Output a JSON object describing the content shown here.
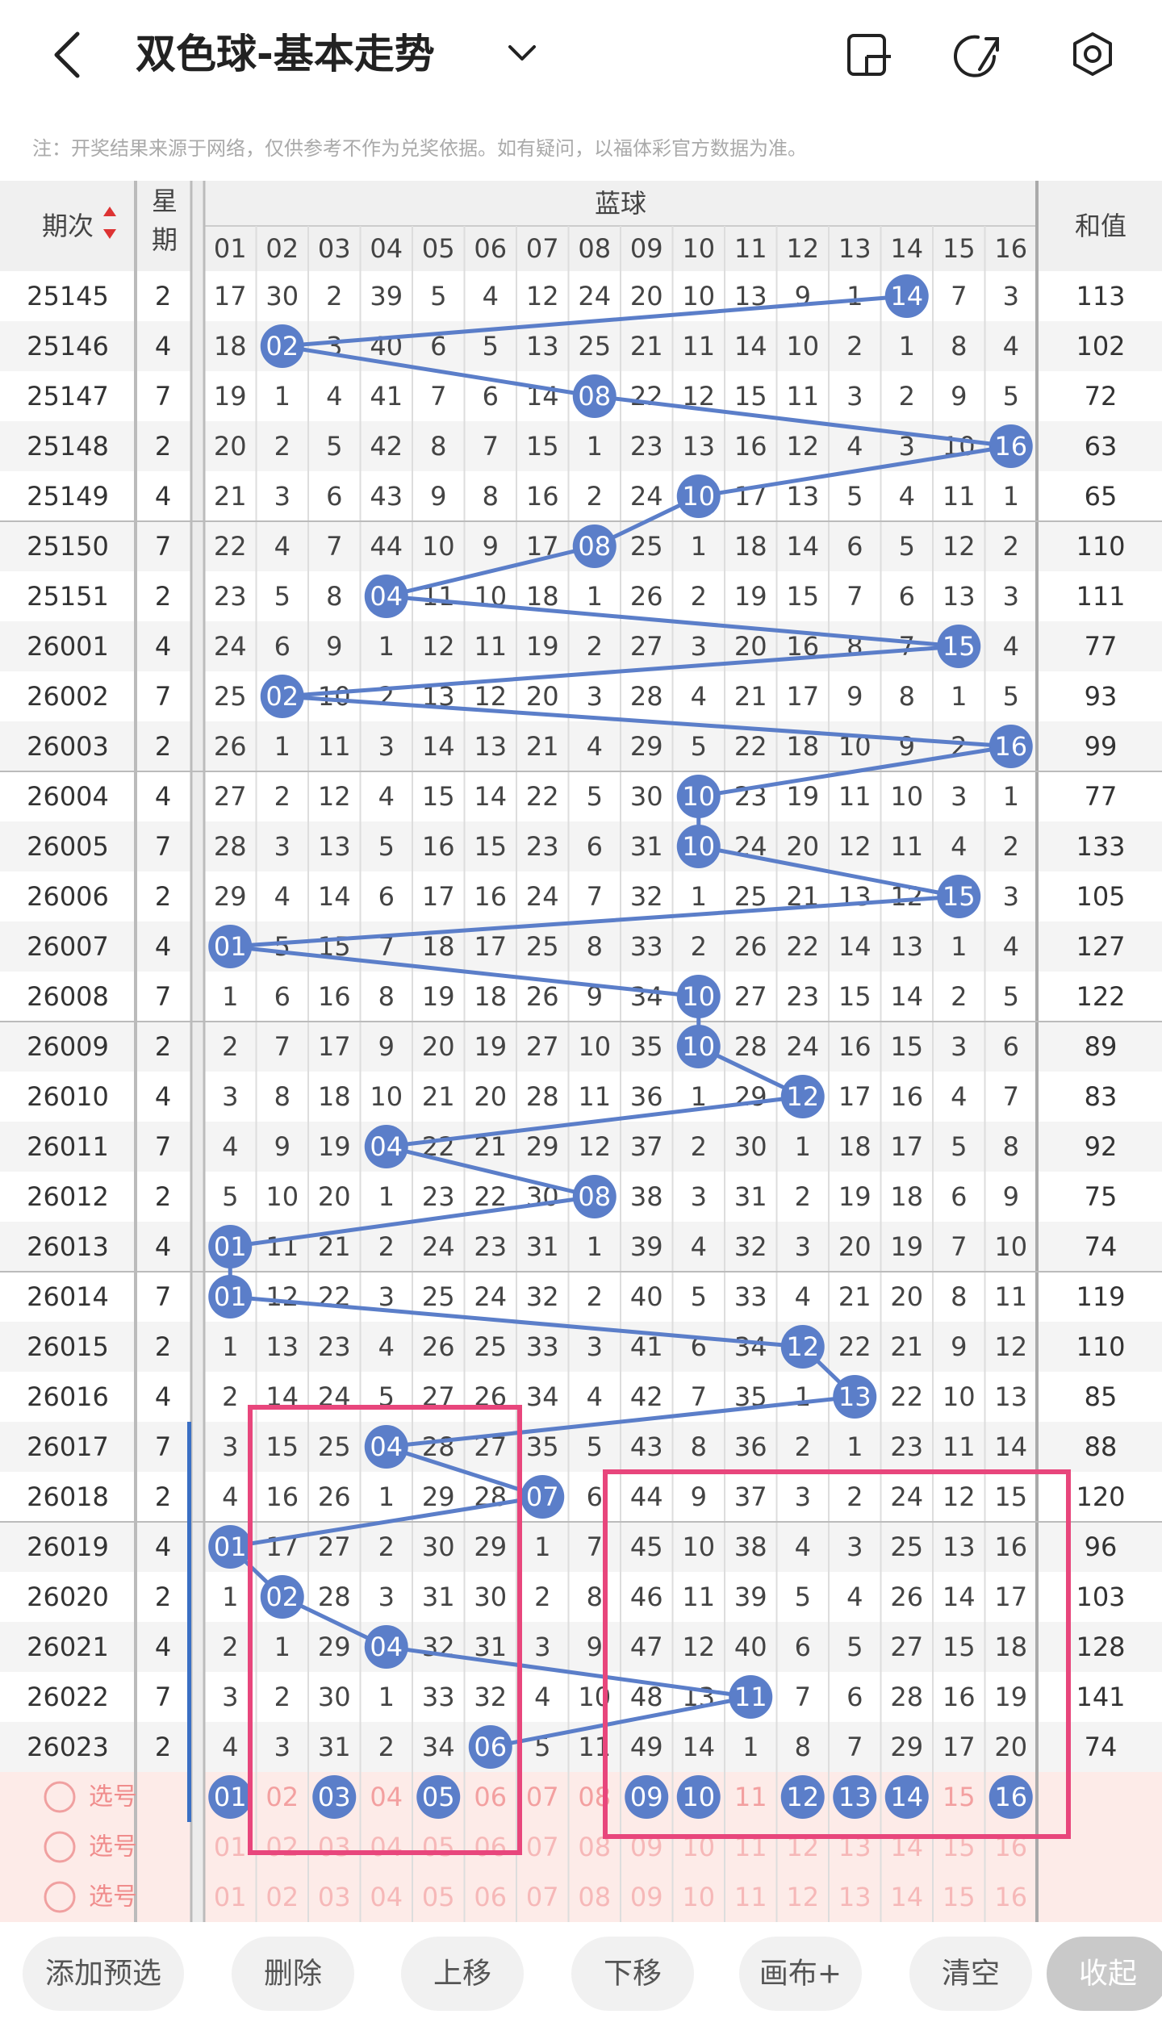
{
  "header": {
    "title": "双色球-基本走势"
  },
  "note": "注：开奖结果来源于网络，仅供参考不作为兑奖依据。如有疑问，以福体彩官方数据为准。",
  "table": {
    "period_header": "期次",
    "weekday_header": "星期",
    "group_header": "蓝球",
    "sum_header": "和值",
    "columns": [
      "01",
      "02",
      "03",
      "04",
      "05",
      "06",
      "07",
      "08",
      "09",
      "10",
      "11",
      "12",
      "13",
      "14",
      "15",
      "16"
    ],
    "rows": [
      {
        "period": "25145",
        "weekday": 2,
        "sum": 113,
        "cells": [
          17,
          30,
          2,
          39,
          5,
          4,
          12,
          24,
          20,
          10,
          13,
          9,
          1,
          {
            "text": "14",
            "hit": true
          },
          7,
          3
        ]
      },
      {
        "period": "25146",
        "weekday": 4,
        "sum": 102,
        "cells": [
          18,
          {
            "text": "02",
            "hit": true
          },
          3,
          40,
          6,
          5,
          13,
          25,
          21,
          11,
          14,
          10,
          2,
          1,
          8,
          4
        ]
      },
      {
        "period": "25147",
        "weekday": 7,
        "sum": 72,
        "cells": [
          19,
          1,
          4,
          41,
          7,
          6,
          14,
          {
            "text": "08",
            "hit": true
          },
          22,
          12,
          15,
          11,
          3,
          2,
          9,
          5
        ]
      },
      {
        "period": "25148",
        "weekday": 2,
        "sum": 63,
        "cells": [
          20,
          2,
          5,
          42,
          8,
          7,
          15,
          1,
          23,
          13,
          16,
          12,
          4,
          3,
          10,
          {
            "text": "16",
            "hit": true
          }
        ]
      },
      {
        "period": "25149",
        "weekday": 4,
        "sum": 65,
        "cells": [
          21,
          3,
          6,
          43,
          9,
          8,
          16,
          2,
          24,
          {
            "text": "10",
            "hit": true
          },
          17,
          13,
          5,
          4,
          11,
          1
        ]
      },
      {
        "period": "25150",
        "weekday": 7,
        "sum": 110,
        "cells": [
          22,
          4,
          7,
          44,
          10,
          9,
          17,
          {
            "text": "08",
            "hit": true
          },
          25,
          1,
          18,
          14,
          6,
          5,
          12,
          2
        ]
      },
      {
        "period": "25151",
        "weekday": 2,
        "sum": 111,
        "cells": [
          23,
          5,
          8,
          {
            "text": "04",
            "hit": true
          },
          11,
          10,
          18,
          1,
          26,
          2,
          19,
          15,
          7,
          6,
          13,
          3
        ]
      },
      {
        "period": "26001",
        "weekday": 4,
        "sum": 77,
        "cells": [
          24,
          6,
          9,
          1,
          12,
          11,
          19,
          2,
          27,
          3,
          20,
          16,
          8,
          7,
          {
            "text": "15",
            "hit": true
          },
          4
        ]
      },
      {
        "period": "26002",
        "weekday": 7,
        "sum": 93,
        "cells": [
          25,
          {
            "text": "02",
            "hit": true
          },
          10,
          2,
          13,
          12,
          20,
          3,
          28,
          4,
          21,
          17,
          9,
          8,
          1,
          5
        ]
      },
      {
        "period": "26003",
        "weekday": 2,
        "sum": 99,
        "cells": [
          26,
          1,
          11,
          3,
          14,
          13,
          21,
          4,
          29,
          5,
          22,
          18,
          10,
          9,
          2,
          {
            "text": "16",
            "hit": true
          }
        ]
      },
      {
        "period": "26004",
        "weekday": 4,
        "sum": 77,
        "cells": [
          27,
          2,
          12,
          4,
          15,
          14,
          22,
          5,
          30,
          {
            "text": "10",
            "hit": true
          },
          23,
          19,
          11,
          10,
          3,
          1
        ]
      },
      {
        "period": "26005",
        "weekday": 7,
        "sum": 133,
        "cells": [
          28,
          3,
          13,
          5,
          16,
          15,
          23,
          6,
          31,
          {
            "text": "10",
            "hit": true
          },
          24,
          20,
          12,
          11,
          4,
          2
        ]
      },
      {
        "period": "26006",
        "weekday": 2,
        "sum": 105,
        "cells": [
          29,
          4,
          14,
          6,
          17,
          16,
          24,
          7,
          32,
          1,
          25,
          21,
          13,
          12,
          {
            "text": "15",
            "hit": true
          },
          3
        ]
      },
      {
        "period": "26007",
        "weekday": 4,
        "sum": 127,
        "cells": [
          {
            "text": "01",
            "hit": true
          },
          5,
          15,
          7,
          18,
          17,
          25,
          8,
          33,
          2,
          26,
          22,
          14,
          13,
          1,
          4
        ]
      },
      {
        "period": "26008",
        "weekday": 7,
        "sum": 122,
        "cells": [
          1,
          6,
          16,
          8,
          19,
          18,
          26,
          9,
          34,
          {
            "text": "10",
            "hit": true
          },
          27,
          23,
          15,
          14,
          2,
          5
        ]
      },
      {
        "period": "26009",
        "weekday": 2,
        "sum": 89,
        "cells": [
          2,
          7,
          17,
          9,
          20,
          19,
          27,
          10,
          35,
          {
            "text": "10",
            "hit": true
          },
          28,
          24,
          16,
          15,
          3,
          6
        ]
      },
      {
        "period": "26010",
        "weekday": 4,
        "sum": 83,
        "cells": [
          3,
          8,
          18,
          10,
          21,
          20,
          28,
          11,
          36,
          1,
          29,
          {
            "text": "12",
            "hit": true
          },
          17,
          16,
          4,
          7
        ]
      },
      {
        "period": "26011",
        "weekday": 7,
        "sum": 92,
        "cells": [
          4,
          9,
          19,
          {
            "text": "04",
            "hit": true
          },
          22,
          21,
          29,
          12,
          37,
          2,
          30,
          1,
          18,
          17,
          5,
          8
        ]
      },
      {
        "period": "26012",
        "weekday": 2,
        "sum": 75,
        "cells": [
          5,
          10,
          20,
          1,
          23,
          22,
          30,
          {
            "text": "08",
            "hit": true
          },
          38,
          3,
          31,
          2,
          19,
          18,
          6,
          9
        ]
      },
      {
        "period": "26013",
        "weekday": 4,
        "sum": 74,
        "cells": [
          {
            "text": "01",
            "hit": true
          },
          11,
          21,
          2,
          24,
          23,
          31,
          1,
          39,
          4,
          32,
          3,
          20,
          19,
          7,
          10
        ]
      },
      {
        "period": "26014",
        "weekday": 7,
        "sum": 119,
        "cells": [
          {
            "text": "01",
            "hit": true
          },
          12,
          22,
          3,
          25,
          24,
          32,
          2,
          40,
          5,
          33,
          4,
          21,
          20,
          8,
          11
        ]
      },
      {
        "period": "26015",
        "weekday": 2,
        "sum": 110,
        "cells": [
          1,
          13,
          23,
          4,
          26,
          25,
          33,
          3,
          41,
          6,
          34,
          {
            "text": "12",
            "hit": true
          },
          22,
          21,
          9,
          12
        ]
      },
      {
        "period": "26016",
        "weekday": 4,
        "sum": 85,
        "cells": [
          2,
          14,
          24,
          5,
          27,
          26,
          34,
          4,
          42,
          7,
          35,
          1,
          {
            "text": "13",
            "hit": true
          },
          22,
          10,
          13
        ]
      },
      {
        "period": "26017",
        "weekday": 7,
        "sum": 88,
        "cells": [
          3,
          15,
          25,
          {
            "text": "04",
            "hit": true
          },
          28,
          27,
          35,
          5,
          43,
          8,
          36,
          2,
          1,
          23,
          11,
          14
        ]
      },
      {
        "period": "26018",
        "weekday": 2,
        "sum": 120,
        "cells": [
          4,
          16,
          26,
          1,
          29,
          28,
          {
            "text": "07",
            "hit": true
          },
          6,
          44,
          9,
          37,
          3,
          2,
          24,
          12,
          15
        ]
      },
      {
        "period": "26019",
        "weekday": 4,
        "sum": 96,
        "cells": [
          {
            "text": "01",
            "hit": true
          },
          17,
          27,
          2,
          30,
          29,
          1,
          7,
          45,
          10,
          38,
          4,
          3,
          25,
          13,
          16
        ]
      },
      {
        "period": "26020",
        "weekday": 2,
        "sum": 103,
        "cells": [
          1,
          {
            "text": "02",
            "hit": true
          },
          28,
          3,
          31,
          30,
          2,
          8,
          46,
          11,
          39,
          5,
          4,
          26,
          14,
          17
        ]
      },
      {
        "period": "26021",
        "weekday": 4,
        "sum": 128,
        "cells": [
          2,
          1,
          29,
          {
            "text": "04",
            "hit": true
          },
          32,
          31,
          3,
          9,
          47,
          12,
          40,
          6,
          5,
          27,
          15,
          18
        ]
      },
      {
        "period": "26022",
        "weekday": 7,
        "sum": 141,
        "cells": [
          3,
          2,
          30,
          1,
          33,
          32,
          4,
          10,
          48,
          13,
          {
            "text": "11",
            "hit": true
          },
          7,
          6,
          28,
          16,
          19
        ]
      },
      {
        "period": "26023",
        "weekday": 2,
        "sum": 74,
        "cells": [
          4,
          3,
          31,
          2,
          34,
          {
            "text": "06",
            "hit": true
          },
          5,
          11,
          49,
          14,
          1,
          8,
          7,
          29,
          17,
          20
        ]
      }
    ],
    "select_rows": [
      {
        "label": "选号",
        "selected": [
          true,
          false,
          true,
          false,
          true,
          false,
          false,
          false,
          true,
          true,
          false,
          true,
          true,
          true,
          false,
          true
        ]
      },
      {
        "label": "选号",
        "selected": [
          false,
          false,
          false,
          false,
          false,
          false,
          false,
          false,
          false,
          false,
          false,
          false,
          false,
          false,
          false,
          false
        ]
      },
      {
        "label": "选号",
        "selected": [
          false,
          false,
          false,
          false,
          false,
          false,
          false,
          false,
          false,
          false,
          false,
          false,
          false,
          false,
          false,
          false
        ]
      }
    ]
  },
  "buttons": [
    "添加预选",
    "删除",
    "上移",
    "下移",
    "画布+",
    "清空",
    "收起"
  ]
}
